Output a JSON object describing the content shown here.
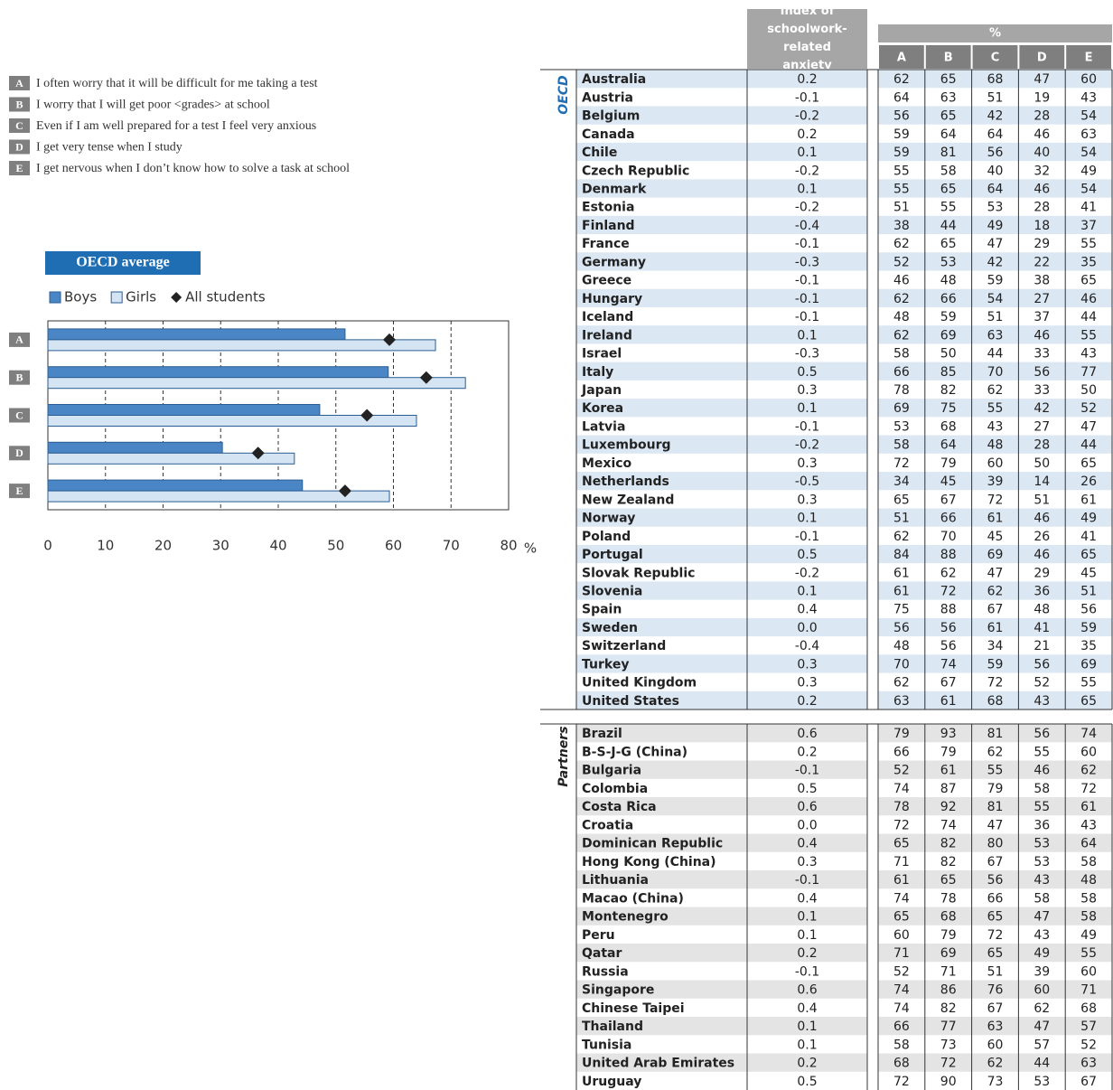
{
  "statements": [
    {
      "key": "A",
      "text": "I often worry that it will be difficult for me taking a test"
    },
    {
      "key": "B",
      "text": "I worry that I will get poor <grades> at school"
    },
    {
      "key": "C",
      "text": "Even if I am well prepared for a test I feel very anxious"
    },
    {
      "key": "D",
      "text": "I get very tense when I study"
    },
    {
      "key": "E",
      "text": "I get nervous when I don’t know how to solve a task at school"
    }
  ],
  "chart_data": {
    "type": "bar",
    "orientation": "horizontal",
    "title": "OECD average",
    "categories": [
      "A",
      "B",
      "C",
      "D",
      "E"
    ],
    "series": [
      {
        "name": "Boys",
        "color": "#4a86c5",
        "mark": "bar",
        "values": [
          51.6,
          59.1,
          47.2,
          30.3,
          44.2
        ]
      },
      {
        "name": "Girls",
        "color": "#d4e4f3",
        "mark": "bar",
        "values": [
          67.3,
          72.5,
          64.0,
          42.8,
          59.3
        ]
      },
      {
        "name": "All students",
        "color": "#222222",
        "mark": "diamond",
        "values": [
          59.3,
          65.7,
          55.4,
          36.5,
          51.6
        ]
      }
    ],
    "xlim": [
      0,
      80
    ],
    "xticks": [
      0,
      10,
      20,
      30,
      40,
      50,
      60,
      70,
      80
    ],
    "x_unit": "%",
    "grid": true
  },
  "table": {
    "index_header": "Index of schoolwork-related anxiety",
    "percent_header": "%",
    "columns": [
      "A",
      "B",
      "C",
      "D",
      "E"
    ],
    "groups": [
      {
        "label": "OECD",
        "rows": [
          [
            "Australia",
            "0.2",
            62,
            65,
            68,
            47,
            60
          ],
          [
            "Austria",
            "-0.1",
            64,
            63,
            51,
            19,
            43
          ],
          [
            "Belgium",
            "-0.2",
            56,
            65,
            42,
            28,
            54
          ],
          [
            "Canada",
            "0.2",
            59,
            64,
            64,
            46,
            63
          ],
          [
            "Chile",
            "0.1",
            59,
            81,
            56,
            40,
            54
          ],
          [
            "Czech Republic",
            "-0.2",
            55,
            58,
            40,
            32,
            49
          ],
          [
            "Denmark",
            "0.1",
            55,
            65,
            64,
            46,
            54
          ],
          [
            "Estonia",
            "-0.2",
            51,
            55,
            53,
            28,
            41
          ],
          [
            "Finland",
            "-0.4",
            38,
            44,
            49,
            18,
            37
          ],
          [
            "France",
            "-0.1",
            62,
            65,
            47,
            29,
            55
          ],
          [
            "Germany",
            "-0.3",
            52,
            53,
            42,
            22,
            35
          ],
          [
            "Greece",
            "-0.1",
            46,
            48,
            59,
            38,
            65
          ],
          [
            "Hungary",
            "-0.1",
            62,
            66,
            54,
            27,
            46
          ],
          [
            "Iceland",
            "-0.1",
            48,
            59,
            51,
            37,
            44
          ],
          [
            "Ireland",
            "0.1",
            62,
            69,
            63,
            46,
            55
          ],
          [
            "Israel",
            "-0.3",
            58,
            50,
            44,
            33,
            43
          ],
          [
            "Italy",
            "0.5",
            66,
            85,
            70,
            56,
            77
          ],
          [
            "Japan",
            "0.3",
            78,
            82,
            62,
            33,
            50
          ],
          [
            "Korea",
            "0.1",
            69,
            75,
            55,
            42,
            52
          ],
          [
            "Latvia",
            "-0.1",
            53,
            68,
            43,
            27,
            47
          ],
          [
            "Luxembourg",
            "-0.2",
            58,
            64,
            48,
            28,
            44
          ],
          [
            "Mexico",
            "0.3",
            72,
            79,
            60,
            50,
            65
          ],
          [
            "Netherlands",
            "-0.5",
            34,
            45,
            39,
            14,
            26
          ],
          [
            "New Zealand",
            "0.3",
            65,
            67,
            72,
            51,
            61
          ],
          [
            "Norway",
            "0.1",
            51,
            66,
            61,
            46,
            49
          ],
          [
            "Poland",
            "-0.1",
            62,
            70,
            45,
            26,
            41
          ],
          [
            "Portugal",
            "0.5",
            84,
            88,
            69,
            46,
            65
          ],
          [
            "Slovak Republic",
            "-0.2",
            61,
            62,
            47,
            29,
            45
          ],
          [
            "Slovenia",
            "0.1",
            61,
            72,
            62,
            36,
            51
          ],
          [
            "Spain",
            "0.4",
            75,
            88,
            67,
            48,
            56
          ],
          [
            "Sweden",
            "0.0",
            56,
            56,
            61,
            41,
            59
          ],
          [
            "Switzerland",
            "-0.4",
            48,
            56,
            34,
            21,
            35
          ],
          [
            "Turkey",
            "0.3",
            70,
            74,
            59,
            56,
            69
          ],
          [
            "United Kingdom",
            "0.3",
            62,
            67,
            72,
            52,
            55
          ],
          [
            "United States",
            "0.2",
            63,
            61,
            68,
            43,
            65
          ]
        ]
      },
      {
        "label": "Partners",
        "rows": [
          [
            "Brazil",
            "0.6",
            79,
            93,
            81,
            56,
            74
          ],
          [
            "B-S-J-G (China)",
            "0.2",
            66,
            79,
            62,
            55,
            60
          ],
          [
            "Bulgaria",
            "-0.1",
            52,
            61,
            55,
            46,
            62
          ],
          [
            "Colombia",
            "0.5",
            74,
            87,
            79,
            58,
            72
          ],
          [
            "Costa Rica",
            "0.6",
            78,
            92,
            81,
            55,
            61
          ],
          [
            "Croatia",
            "0.0",
            72,
            74,
            47,
            36,
            43
          ],
          [
            "Dominican Republic",
            "0.4",
            65,
            82,
            80,
            53,
            64
          ],
          [
            "Hong Kong (China)",
            "0.3",
            71,
            82,
            67,
            53,
            58
          ],
          [
            "Lithuania",
            "-0.1",
            61,
            65,
            56,
            43,
            48
          ],
          [
            "Macao (China)",
            "0.4",
            74,
            78,
            66,
            58,
            58
          ],
          [
            "Montenegro",
            "0.1",
            65,
            68,
            65,
            47,
            58
          ],
          [
            "Peru",
            "0.1",
            60,
            79,
            72,
            43,
            49
          ],
          [
            "Qatar",
            "0.2",
            71,
            69,
            65,
            49,
            55
          ],
          [
            "Russia",
            "-0.1",
            52,
            71,
            51,
            39,
            60
          ],
          [
            "Singapore",
            "0.6",
            74,
            86,
            76,
            60,
            71
          ],
          [
            "Chinese Taipei",
            "0.4",
            74,
            82,
            67,
            62,
            68
          ],
          [
            "Thailand",
            "0.1",
            66,
            77,
            63,
            47,
            57
          ],
          [
            "Tunisia",
            "0.1",
            58,
            73,
            60,
            57,
            52
          ],
          [
            "United Arab Emirates",
            "0.2",
            68,
            72,
            62,
            44,
            63
          ],
          [
            "Uruguay",
            "0.5",
            72,
            90,
            73,
            53,
            67
          ]
        ]
      }
    ]
  }
}
